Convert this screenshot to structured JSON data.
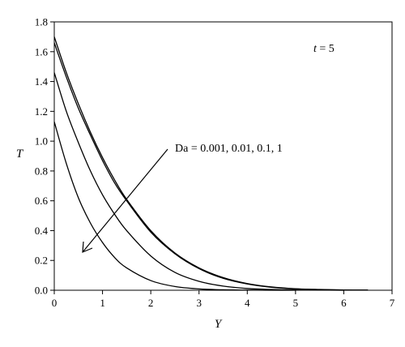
{
  "chart_data": {
    "type": "line",
    "title": "",
    "xlabel": "Y",
    "ylabel": "T",
    "xlim": [
      0,
      7
    ],
    "ylim": [
      0,
      1.8
    ],
    "xticks": [
      "0",
      "1",
      "2",
      "3",
      "4",
      "5",
      "6",
      "7"
    ],
    "yticks": [
      "0.0",
      "0.2",
      "0.4",
      "0.6",
      "0.8",
      "1.0",
      "1.2",
      "1.4",
      "1.6",
      "1.8"
    ],
    "grid": false,
    "legend": false,
    "annotations": {
      "time_var": "t",
      "time_eq": " = 5",
      "da_label": "Da = 0.001, 0.01, 0.1, 1"
    },
    "series": [
      {
        "x": [
          0,
          0.25,
          0.5,
          0.75,
          1,
          1.25,
          1.5,
          2,
          2.5,
          3,
          3.5,
          4,
          4.5,
          5,
          5.5,
          6,
          6.5
        ],
        "values": [
          1.7,
          1.46,
          1.25,
          1.06,
          0.89,
          0.74,
          0.61,
          0.4,
          0.25,
          0.15,
          0.085,
          0.045,
          0.022,
          0.01,
          0.005,
          0.002,
          0.001
        ]
      },
      {
        "x": [
          0,
          0.25,
          0.5,
          0.75,
          1,
          1.25,
          1.5,
          2,
          2.5,
          3,
          3.5,
          4,
          4.5,
          5,
          5.5,
          6,
          6.5
        ],
        "values": [
          1.66,
          1.43,
          1.22,
          1.04,
          0.87,
          0.72,
          0.6,
          0.39,
          0.245,
          0.145,
          0.08,
          0.042,
          0.02,
          0.009,
          0.004,
          0.002,
          0.001
        ]
      },
      {
        "x": [
          0,
          0.25,
          0.5,
          0.75,
          1,
          1.25,
          1.5,
          2,
          2.5,
          3,
          3.5,
          4,
          4.5,
          5,
          5.5,
          6
        ],
        "values": [
          1.46,
          1.2,
          0.99,
          0.8,
          0.64,
          0.51,
          0.4,
          0.23,
          0.12,
          0.06,
          0.028,
          0.012,
          0.005,
          0.002,
          0.001,
          0.0
        ]
      },
      {
        "x": [
          0,
          0.25,
          0.5,
          0.75,
          1,
          1.25,
          1.5,
          2,
          2.5,
          3,
          3.5,
          4,
          4.5,
          5
        ],
        "values": [
          1.13,
          0.85,
          0.62,
          0.45,
          0.32,
          0.22,
          0.15,
          0.065,
          0.025,
          0.009,
          0.003,
          0.001,
          0.0,
          0.0
        ]
      }
    ]
  }
}
